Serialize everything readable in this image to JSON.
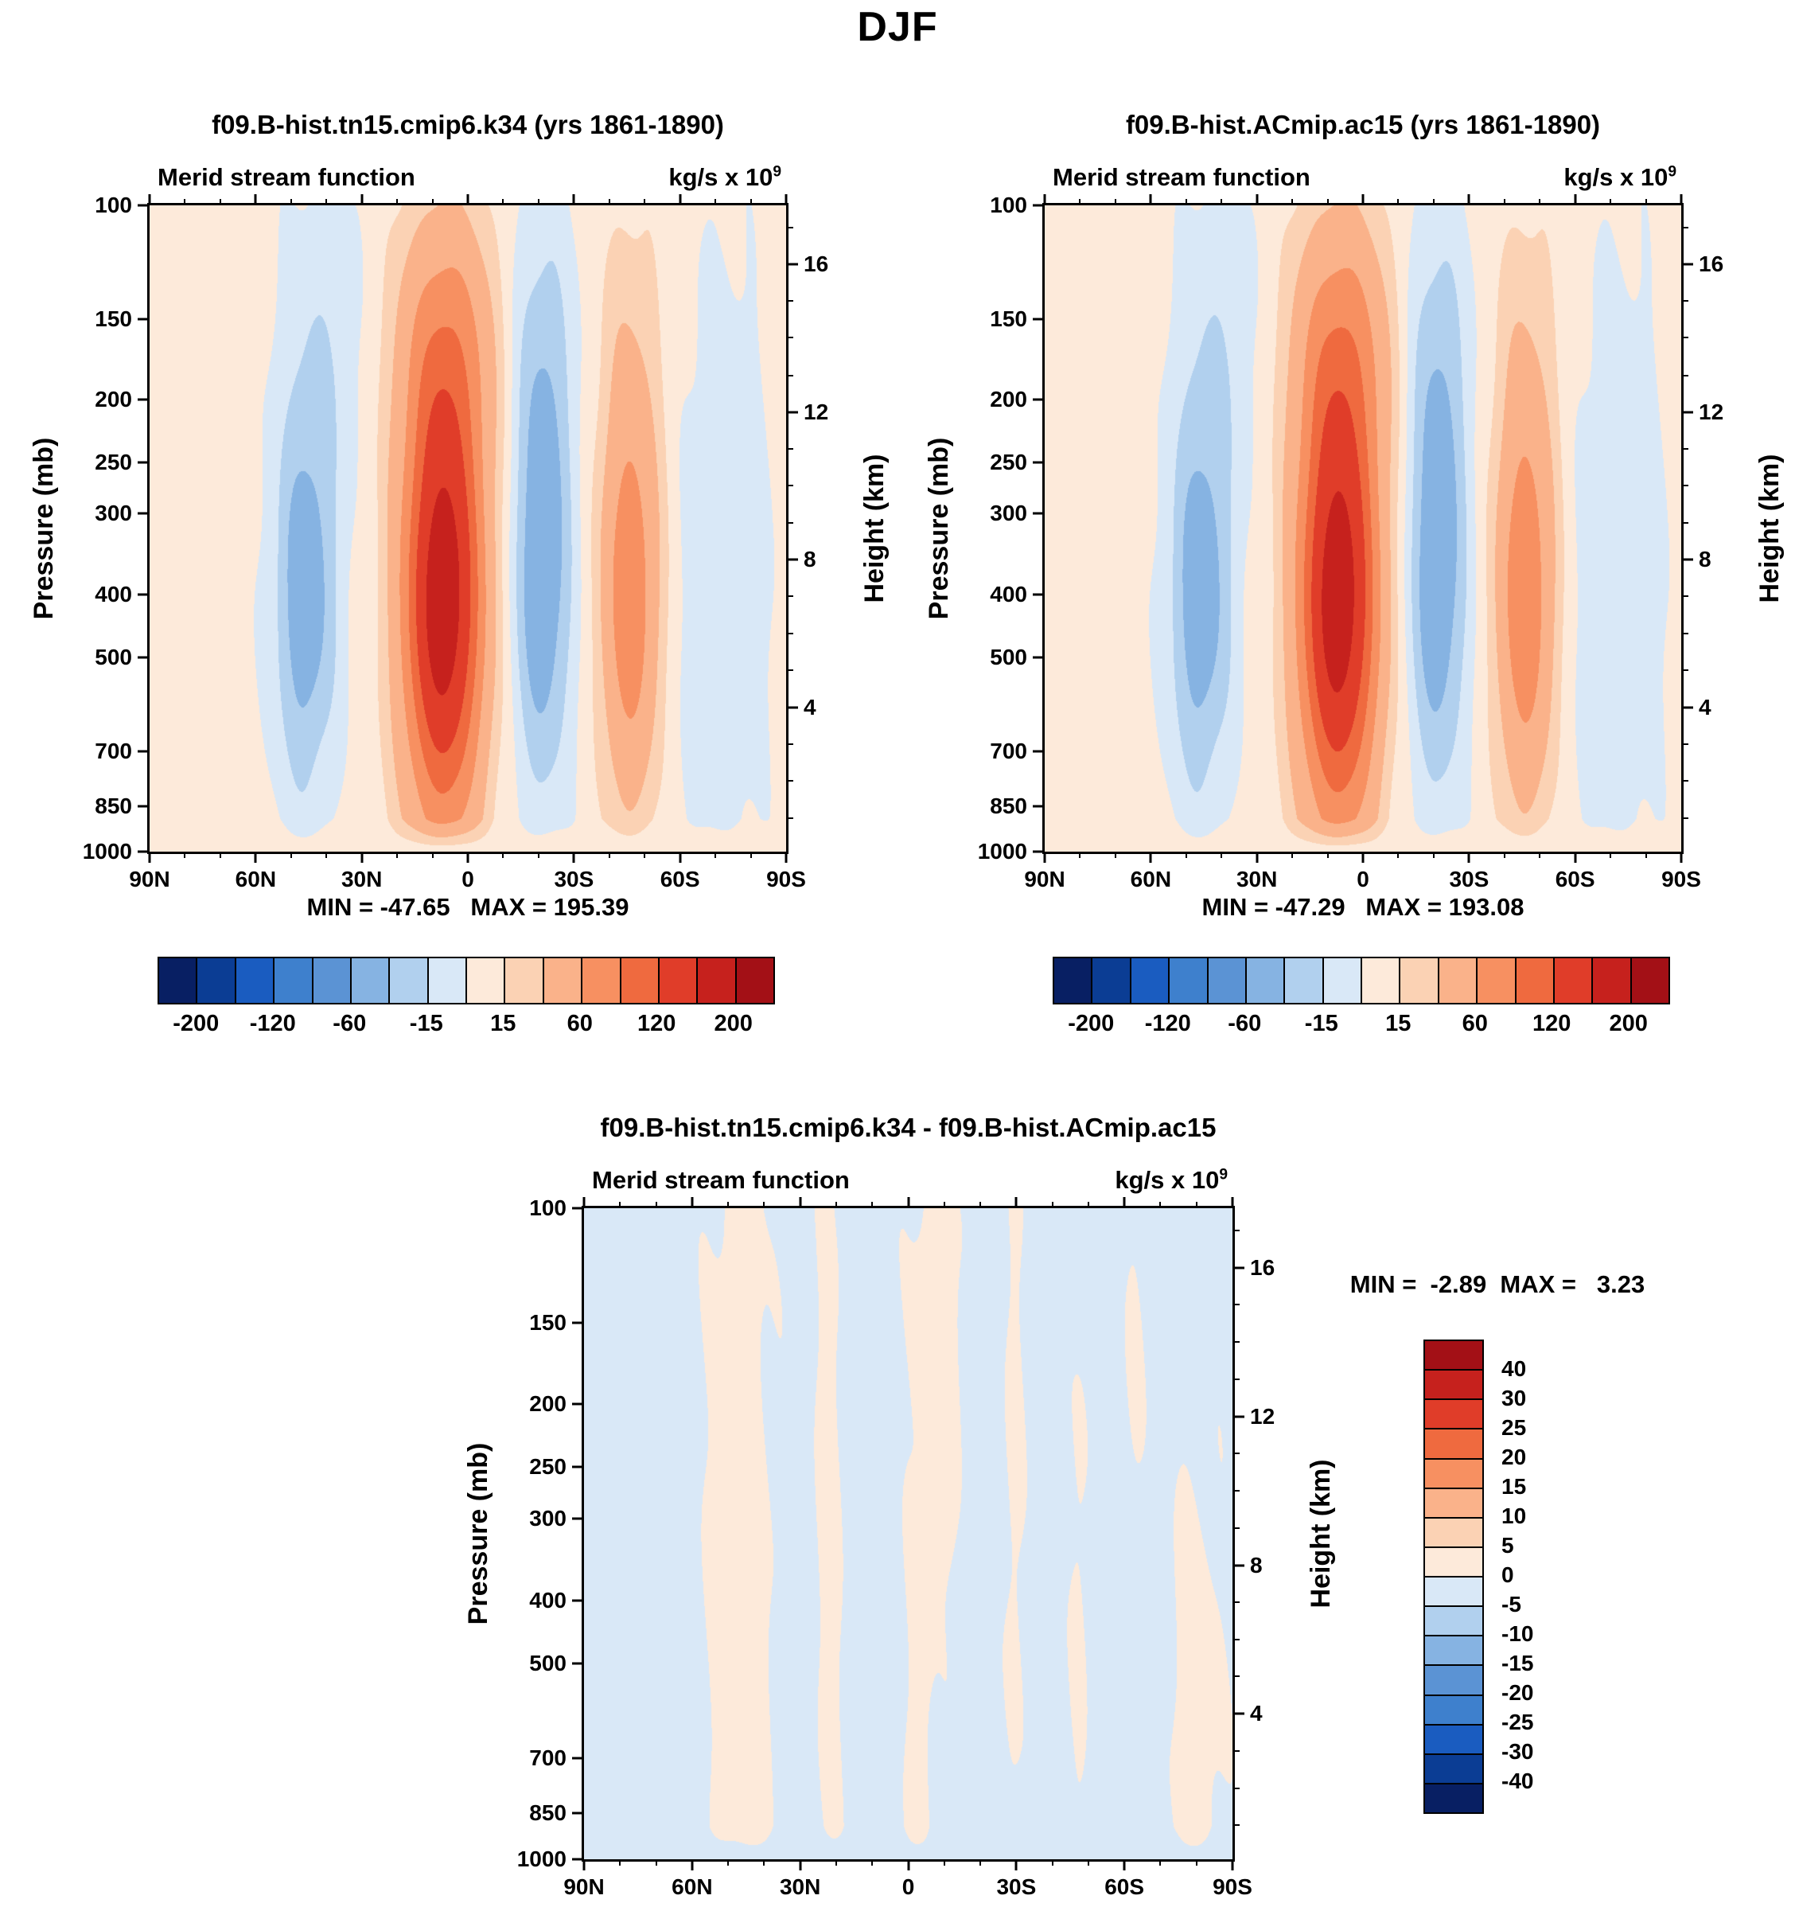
{
  "title": "DJF",
  "panel_a": {
    "title": "f09.B-hist.tn15.cmip6.k34 (yrs 1861-1890)",
    "minmax": "MIN = -47.65   MAX = 195.39"
  },
  "panel_b": {
    "title": "f09.B-hist.ACmip.ac15 (yrs 1861-1890)",
    "minmax": "MIN = -47.29   MAX = 193.08"
  },
  "panel_diff": {
    "title": "f09.B-hist.tn15.cmip6.k34 - f09.B-hist.ACmip.ac15",
    "minmax": "MIN =  -2.89  MAX =   3.23"
  },
  "common": {
    "field_label": "Merid stream function",
    "units_base": "kg/s x 10",
    "units_exp": "9",
    "pressure_axis_label": "Pressure (mb)",
    "height_axis_label": "Height (km)"
  },
  "axes": {
    "pressure": [
      {
        "t": "100",
        "f": 0.0
      },
      {
        "t": "150",
        "f": 0.1761
      },
      {
        "t": "200",
        "f": 0.301
      },
      {
        "t": "250",
        "f": 0.3979
      },
      {
        "t": "300",
        "f": 0.4771
      },
      {
        "t": "400",
        "f": 0.6021
      },
      {
        "t": "500",
        "f": 0.699
      },
      {
        "t": "700",
        "f": 0.8451
      },
      {
        "t": "850",
        "f": 0.9294
      },
      {
        "t": "1000",
        "f": 1.0
      }
    ],
    "height": [
      {
        "t": "16",
        "f": 0.0917
      },
      {
        "t": "12",
        "f": 0.3199
      },
      {
        "t": "8",
        "f": 0.5483
      },
      {
        "t": "4",
        "f": 0.7766
      }
    ],
    "height_minor": [
      0.0345,
      0.148,
      0.205,
      0.263,
      0.377,
      0.434,
      0.491,
      0.605,
      0.662,
      0.719,
      0.834,
      0.891,
      0.948
    ],
    "lat": [
      {
        "t": "90N",
        "f": 0.0
      },
      {
        "t": "60N",
        "f": 0.1667
      },
      {
        "t": "30N",
        "f": 0.3333
      },
      {
        "t": "0",
        "f": 0.5
      },
      {
        "t": "30S",
        "f": 0.6667
      },
      {
        "t": "60S",
        "f": 0.8333
      },
      {
        "t": "90S",
        "f": 1.0
      }
    ],
    "lat_minor": [
      0.0556,
      0.1111,
      0.2222,
      0.2778,
      0.3889,
      0.4444,
      0.5556,
      0.6111,
      0.7222,
      0.7778,
      0.8889,
      0.9444
    ]
  },
  "cbar_main": {
    "labels": [
      {
        "t": "-200",
        "f": 0.0625
      },
      {
        "t": "-120",
        "f": 0.1875
      },
      {
        "t": "-60",
        "f": 0.3125
      },
      {
        "t": "-15",
        "f": 0.4375
      },
      {
        "t": "15",
        "f": 0.5625
      },
      {
        "t": "60",
        "f": 0.6875
      },
      {
        "t": "120",
        "f": 0.8125
      },
      {
        "t": "200",
        "f": 0.9375
      }
    ]
  },
  "cbar_diff": {
    "labels": [
      {
        "t": "40",
        "f": 0.0625
      },
      {
        "t": "30",
        "f": 0.125
      },
      {
        "t": "25",
        "f": 0.1875
      },
      {
        "t": "20",
        "f": 0.25
      },
      {
        "t": "15",
        "f": 0.3125
      },
      {
        "t": "10",
        "f": 0.375
      },
      {
        "t": "5",
        "f": 0.4375
      },
      {
        "t": "0",
        "f": 0.5
      },
      {
        "t": "-5",
        "f": 0.5625
      },
      {
        "t": "-10",
        "f": 0.625
      },
      {
        "t": "-15",
        "f": 0.6875
      },
      {
        "t": "-20",
        "f": 0.75
      },
      {
        "t": "-25",
        "f": 0.8125
      },
      {
        "t": "-30",
        "f": 0.875
      },
      {
        "t": "-40",
        "f": 0.9375
      }
    ]
  },
  "chart_data": {
    "type": "heatmap",
    "subtype": "filled-contour latitude-pressure cross sections of DJF meridional stream function",
    "x_axis": "latitude, 90N (left) to 90S (right)",
    "y_axis": "pressure 100-1000 mb, log scale (height 16-4 km on right axis)",
    "units": "kg/s x 10^9",
    "levels_main": [
      -200,
      -160,
      -120,
      -90,
      -60,
      -30,
      -15,
      0,
      15,
      30,
      60,
      90,
      120,
      160,
      200
    ],
    "levels_diff": [
      -40,
      -30,
      -25,
      -20,
      -15,
      -10,
      -5,
      0,
      5,
      10,
      15,
      20,
      25,
      30,
      40
    ],
    "colors_main": [
      "#081f63",
      "#0b3d94",
      "#1a5cc0",
      "#3e80cd",
      "#5b93d4",
      "#86b3e2",
      "#b1d0ee",
      "#d9e8f7",
      "#fdeada",
      "#fbd2b4",
      "#fab28a",
      "#f79061",
      "#ef6a3f",
      "#e03d29",
      "#c6211d",
      "#a31016"
    ],
    "colorbar_ticks_main": [
      -200,
      -120,
      -60,
      -15,
      15,
      60,
      120,
      200
    ],
    "colorbar_ticks_diff": [
      40,
      30,
      25,
      20,
      15,
      10,
      5,
      0,
      -5,
      -10,
      -15,
      -20,
      -25,
      -30,
      -40
    ],
    "pressure_ticks_mb": [
      100,
      150,
      200,
      250,
      300,
      400,
      500,
      700,
      850,
      1000
    ],
    "height_ticks_km": [
      16,
      12,
      8,
      4
    ],
    "lat_ticks": [
      "90N",
      "60N",
      "30N",
      "0",
      "30S",
      "60S",
      "90S"
    ],
    "panels": [
      {
        "name": "f09.B-hist.tn15.cmip6.k34 (yrs 1861-1890)",
        "min": -47.65,
        "max": 195.39,
        "base": 6,
        "wobble": 2.5,
        "cells": [
          {
            "a": 182,
            "x": 7,
            "sx": 11,
            "y": 0.62,
            "sy": 0.33
          },
          {
            "a": 55,
            "x": 6,
            "sx": 14,
            "y": 0.22,
            "sy": 0.22
          },
          {
            "a": -48,
            "x": 46,
            "sx": 9,
            "y": 0.62,
            "sy": 0.3
          },
          {
            "a": -16,
            "x": 41,
            "sx": 13,
            "y": 0.22,
            "sy": 0.26
          },
          {
            "a": -49,
            "x": -21,
            "sx": 8.5,
            "y": 0.6,
            "sy": 0.32
          },
          {
            "a": -24,
            "x": -21,
            "sx": 10,
            "y": 0.22,
            "sy": 0.26
          },
          {
            "a": 74,
            "x": -46,
            "sx": 8,
            "y": 0.62,
            "sy": 0.3
          },
          {
            "a": 16,
            "x": -46,
            "sx": 10,
            "y": 0.25,
            "sy": 0.28
          },
          {
            "a": -17,
            "x": -72,
            "sx": 14,
            "y": 0.55,
            "sy": 0.5
          }
        ]
      },
      {
        "name": "f09.B-hist.ACmip.ac15 (yrs 1861-1890)",
        "min": -47.29,
        "max": 193.08,
        "base": 6,
        "wobble": 2.5,
        "cells": [
          {
            "a": 180,
            "x": 7,
            "sx": 11,
            "y": 0.62,
            "sy": 0.33
          },
          {
            "a": 55,
            "x": 6,
            "sx": 14,
            "y": 0.22,
            "sy": 0.22
          },
          {
            "a": -48,
            "x": 46,
            "sx": 9,
            "y": 0.62,
            "sy": 0.3
          },
          {
            "a": -16,
            "x": 41,
            "sx": 13,
            "y": 0.22,
            "sy": 0.26
          },
          {
            "a": -48.5,
            "x": -21,
            "sx": 8.5,
            "y": 0.6,
            "sy": 0.32
          },
          {
            "a": -24,
            "x": -21,
            "sx": 10,
            "y": 0.22,
            "sy": 0.26
          },
          {
            "a": 76,
            "x": -46,
            "sx": 8,
            "y": 0.62,
            "sy": 0.3
          },
          {
            "a": 16,
            "x": -46,
            "sx": 10,
            "y": 0.25,
            "sy": 0.28
          },
          {
            "a": -17,
            "x": -72,
            "sx": 14,
            "y": 0.55,
            "sy": 0.5
          }
        ]
      },
      {
        "name": "difference (k34 - ac15)",
        "min": -2.89,
        "max": 3.23,
        "base": -1.3,
        "wobble": 0.8,
        "cells": [
          {
            "a": 3.2,
            "x": 47,
            "sx": 9,
            "y": 0.35,
            "sy": 0.65
          },
          {
            "a": 2.6,
            "x": 45,
            "sx": 7,
            "y": 0.85,
            "sy": 0.3
          },
          {
            "a": 2.4,
            "x": 22,
            "sx": 4.5,
            "y": 0.5,
            "sy": 0.75
          },
          {
            "a": 3.4,
            "x": -8,
            "sx": 8,
            "y": 0.22,
            "sy": 0.38
          },
          {
            "a": 2.2,
            "x": -3,
            "sx": 5,
            "y": 0.9,
            "sy": 0.3
          },
          {
            "a": 2.0,
            "x": -29,
            "sx": 3.5,
            "y": 0.5,
            "sy": 0.9
          },
          {
            "a": 1.8,
            "x": -48,
            "sx": 3.5,
            "y": 0.55,
            "sy": 0.6
          },
          {
            "a": 3.0,
            "x": -80,
            "sx": 8,
            "y": 0.8,
            "sy": 0.45
          },
          {
            "a": 1.6,
            "x": -62,
            "sx": 4,
            "y": 0.3,
            "sy": 0.4
          }
        ]
      }
    ]
  }
}
